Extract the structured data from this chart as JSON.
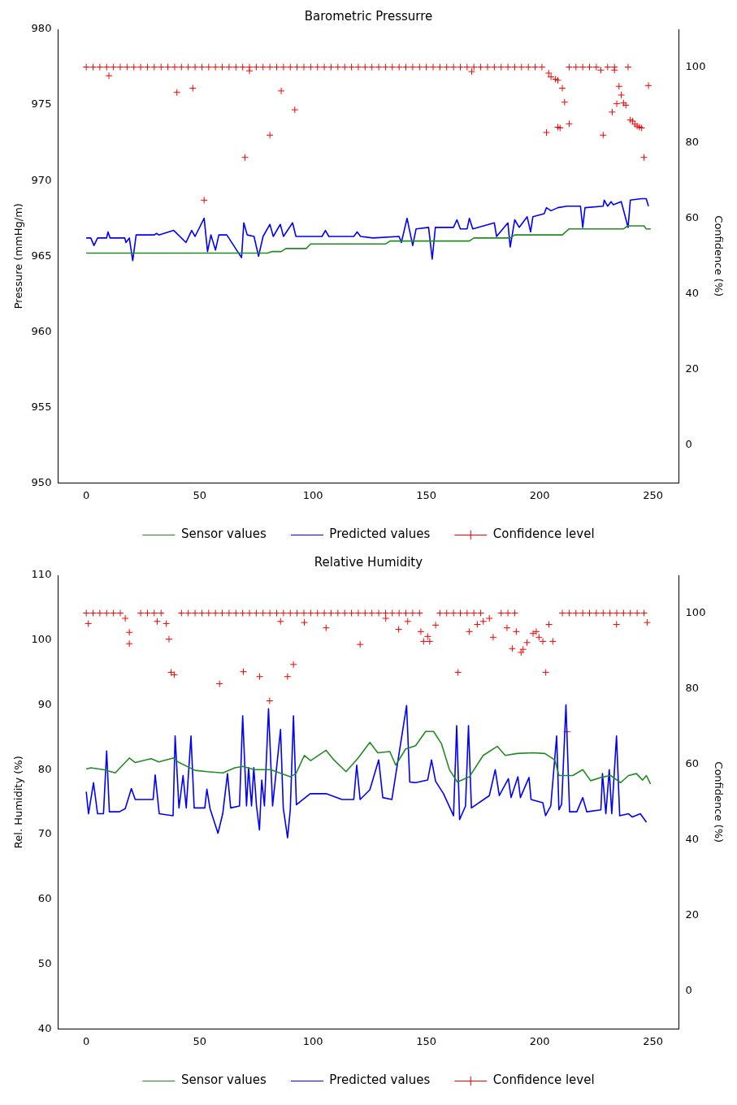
{
  "chart_data": [
    {
      "type": "line",
      "title": "Barometric Pressurre",
      "ylabel": "Pressure (mmHg/m)",
      "y2label": "Confidence (%)",
      "xlim": [
        -12.45,
        261.45
      ],
      "xticks": [
        0,
        50,
        100,
        150,
        200,
        250
      ],
      "ylim": [
        950,
        980
      ],
      "yticks": [
        950,
        955,
        960,
        965,
        970,
        975,
        980
      ],
      "y2lim": [
        -10,
        110
      ],
      "y2ticks": [
        0,
        20,
        40,
        60,
        80,
        100
      ],
      "legend": "bottom",
      "series": [
        {
          "name": "Sensor values",
          "type": "line",
          "color": "#228b22",
          "marker": "none",
          "line_style": "solid",
          "x": [
            0,
            80,
            82,
            86,
            88,
            97,
            99,
            132,
            134,
            169,
            171,
            187,
            189,
            210,
            213,
            237,
            239,
            246,
            247,
            249
          ],
          "values": [
            965.2,
            965.2,
            965.3,
            965.3,
            965.5,
            965.5,
            965.8,
            965.8,
            966.0,
            966.0,
            966.2,
            966.2,
            966.4,
            966.4,
            966.8,
            966.8,
            967.0,
            967.0,
            966.8,
            966.8
          ]
        },
        {
          "name": "Predicted values",
          "type": "line",
          "color": "#0000ff",
          "marker": "none",
          "line_style": "solid",
          "x": [
            0,
            2,
            3.4,
            5,
            9,
            9.6,
            10.5,
            17,
            17.5,
            19,
            20.5,
            22,
            30,
            31,
            32,
            38.6,
            44,
            46.5,
            48,
            52,
            53.5,
            55,
            57,
            58.5,
            62,
            68.5,
            69.5,
            71,
            74,
            76,
            78,
            81,
            82.5,
            85.6,
            87,
            91,
            92.5,
            104,
            105.5,
            107,
            118,
            119.5,
            121,
            126.5,
            138,
            139,
            141.5,
            144,
            145.5,
            151,
            152.6,
            154,
            162,
            163.5,
            165,
            168,
            169,
            170.5,
            180,
            181,
            186,
            187,
            189,
            191,
            194.5,
            196,
            197,
            202,
            203,
            205,
            208,
            212,
            218,
            219,
            220,
            228,
            228.5,
            230,
            231.5,
            232.5,
            236,
            239,
            240,
            245,
            247,
            248
          ],
          "values": [
            966.2,
            966.2,
            965.7,
            966.2,
            966.2,
            966.6,
            966.2,
            966.2,
            965.9,
            966.2,
            964.7,
            966.4,
            966.4,
            966.5,
            966.4,
            966.7,
            965.9,
            966.7,
            966.3,
            967.5,
            965.3,
            966.4,
            965.4,
            966.4,
            966.4,
            964.9,
            967.2,
            966.4,
            966.3,
            965.0,
            966.3,
            967.1,
            966.3,
            967.1,
            966.3,
            967.2,
            966.3,
            966.3,
            966.7,
            966.3,
            966.3,
            966.6,
            966.3,
            966.2,
            966.3,
            965.9,
            967.5,
            965.7,
            966.8,
            966.9,
            964.8,
            966.9,
            966.9,
            967.4,
            966.8,
            966.8,
            967.5,
            966.8,
            967.2,
            966.3,
            967.2,
            965.6,
            967.4,
            966.9,
            967.6,
            966.6,
            967.6,
            967.8,
            968.2,
            968.0,
            968.2,
            968.3,
            968.3,
            966.9,
            968.2,
            968.3,
            968.7,
            968.3,
            968.6,
            968.4,
            968.6,
            966.9,
            968.7,
            968.8,
            968.8,
            968.3
          ]
        },
        {
          "name": "Confidence level",
          "type": "scatter",
          "axis": "y2",
          "color": "#ff0000",
          "marker": "cross",
          "x": [
            0,
            3,
            6,
            9,
            12,
            15,
            18,
            21,
            24,
            27,
            30,
            33,
            36,
            39,
            42,
            45,
            48,
            51,
            54,
            57,
            60,
            63,
            66,
            69,
            72,
            75,
            78,
            81,
            84,
            87,
            90,
            93,
            96,
            99,
            102,
            105,
            108,
            111,
            114,
            117,
            120,
            123,
            126,
            129,
            132,
            135,
            138,
            141,
            144,
            147,
            150,
            153,
            156,
            159,
            162,
            165,
            168,
            171,
            174,
            177,
            180,
            183,
            186,
            189,
            192,
            195,
            198,
            201,
            213,
            216,
            219,
            222,
            225,
            230,
            233,
            239,
            10,
            40,
            47,
            52,
            70,
            81,
            86,
            92,
            72,
            170,
            204,
            205,
            207,
            208,
            210,
            211,
            203,
            208,
            209,
            213,
            227,
            228,
            232,
            233,
            234,
            235,
            236,
            237,
            238,
            240,
            241,
            242,
            243,
            244,
            245,
            246,
            248
          ],
          "values": [
            100,
            100,
            100,
            100,
            100,
            100,
            100,
            100,
            100,
            100,
            100,
            100,
            100,
            100,
            100,
            100,
            100,
            100,
            100,
            100,
            100,
            100,
            100,
            100,
            100,
            100,
            100,
            100,
            100,
            100,
            100,
            100,
            100,
            100,
            100,
            100,
            100,
            100,
            100,
            100,
            100,
            100,
            100,
            100,
            100,
            100,
            100,
            100,
            100,
            100,
            100,
            100,
            100,
            100,
            100,
            100,
            100,
            100,
            100,
            100,
            100,
            100,
            100,
            100,
            100,
            100,
            100,
            100,
            100,
            100,
            100,
            100,
            100,
            100,
            100,
            100,
            97.7,
            93.3,
            94.4,
            64.8,
            76.1,
            82.0,
            93.7,
            88.7,
            99,
            98.8,
            98.4,
            97.4,
            96.8,
            96.5,
            94.4,
            90.7,
            82.7,
            84.1,
            83.9,
            85.0,
            99.2,
            82.0,
            88.1,
            99.2,
            90.3,
            94.9,
            92.6,
            90.5,
            89.9,
            86.0,
            85.7,
            84.9,
            84.4,
            84.1,
            83.9,
            76.1,
            95.1
          ]
        }
      ]
    },
    {
      "type": "line",
      "title": "Relative Humidity",
      "ylabel": "Rel. Humidity (%)",
      "y2label": "Confidence (%)",
      "xlim": [
        -12.45,
        261.45
      ],
      "xticks": [
        0,
        50,
        100,
        150,
        200,
        250
      ],
      "ylim": [
        40,
        110
      ],
      "yticks": [
        40,
        50,
        60,
        70,
        80,
        90,
        100,
        110
      ],
      "y2lim": [
        -10,
        110
      ],
      "y2ticks": [
        0,
        20,
        40,
        60,
        80,
        100
      ],
      "legend": "bottom",
      "series": [
        {
          "name": "Sensor values",
          "type": "line",
          "color": "#228b22",
          "marker": "none",
          "line_style": "solid",
          "x": [
            0,
            2,
            7.6,
            12.8,
            19,
            21.6,
            28.6,
            32,
            38.3,
            41,
            48,
            53.2,
            60.3,
            65.5,
            69,
            74.2,
            81.3,
            90,
            92.5,
            96.2,
            99,
            105.8,
            109,
            114.6,
            119.9,
            125.1,
            128.6,
            133.9,
            136.5,
            140.9,
            145.3,
            149.7,
            153.2,
            156.7,
            160.2,
            163.7,
            169,
            175.1,
            181.3,
            184.8,
            190,
            197.1,
            202.3,
            206.7,
            208.5,
            214.6,
            219,
            222.5,
            226.9,
            231.3,
            235.7,
            239.2,
            242.7,
            245.4,
            247.1,
            248.9
          ],
          "values": [
            80.1,
            80.3,
            80.0,
            79.5,
            81.8,
            81.1,
            81.7,
            81.2,
            81.8,
            81.1,
            79.9,
            79.7,
            79.5,
            80.3,
            80.5,
            80.0,
            80.0,
            78.9,
            79.4,
            82.2,
            81.4,
            83.0,
            81.6,
            79.7,
            81.8,
            84.2,
            82.6,
            82.8,
            80.7,
            83.2,
            83.7,
            85.9,
            85.9,
            84.0,
            80.0,
            78.1,
            78.9,
            82.2,
            83.6,
            82.2,
            82.5,
            82.6,
            82.5,
            81.5,
            79.1,
            79.1,
            80.0,
            78.3,
            78.8,
            79.1,
            78.0,
            79.1,
            79.4,
            78.4,
            79.1,
            77.8
          ]
        },
        {
          "name": "Predicted values",
          "type": "line",
          "color": "#0000ff",
          "marker": "none",
          "line_style": "solid",
          "x": [
            0,
            1,
            3.2,
            5,
            7.6,
            9,
            10.2,
            14.6,
            17.2,
            19.9,
            21.6,
            29.5,
            30.4,
            32.2,
            38.3,
            39.2,
            40.9,
            42.7,
            44.1,
            46.2,
            47.6,
            52.3,
            53.2,
            54.6,
            58.1,
            60.2,
            62.3,
            63.7,
            67.6,
            69,
            70.7,
            71.6,
            72.9,
            73.9,
            75.1,
            76.4,
            77.4,
            78.6,
            80.4,
            82.2,
            85.7,
            86.9,
            88.8,
            90,
            91.4,
            92.7,
            98.8,
            105.8,
            112.8,
            118,
            119.3,
            120.8,
            125.1,
            129,
            130.8,
            134.8,
            141.3,
            142.7,
            145.3,
            150.6,
            152.3,
            154.1,
            157.6,
            162,
            163.4,
            164.7,
            167.3,
            168.6,
            169.9,
            177.8,
            180.4,
            182.2,
            186.2,
            187.4,
            190.4,
            191.5,
            195.3,
            196.2,
            201.4,
            202.6,
            204.9,
            207.5,
            208.5,
            209.7,
            211.6,
            213.2,
            216.4,
            219,
            220.8,
            227,
            227.7,
            229.2,
            230.7,
            231.8,
            233.9,
            235.3,
            239.2,
            240.9,
            244.4,
            247.1
          ],
          "values": [
            76.6,
            73.2,
            78.0,
            73.2,
            73.2,
            82.9,
            73.5,
            73.5,
            74.0,
            77.1,
            75.4,
            75.4,
            79.2,
            73.2,
            72.9,
            85.2,
            74.1,
            79.1,
            74.1,
            85.2,
            74.1,
            74.1,
            77.0,
            74.0,
            70.2,
            73.2,
            79.4,
            74.1,
            74.4,
            88.3,
            74.4,
            80.3,
            74.4,
            80.3,
            74.4,
            70.7,
            78.4,
            74.4,
            89.4,
            74.4,
            86.2,
            74.1,
            69.5,
            73.8,
            88.3,
            74.6,
            76.3,
            76.3,
            75.4,
            75.4,
            80.7,
            75.4,
            76.9,
            81.5,
            75.7,
            75.4,
            89.9,
            78.1,
            78.0,
            78.4,
            81.5,
            78.2,
            76.3,
            72.9,
            86.8,
            72.3,
            74.4,
            86.8,
            74.1,
            76.0,
            80.0,
            76.0,
            78.6,
            75.7,
            78.9,
            75.7,
            78.8,
            75.4,
            74.9,
            72.9,
            74.4,
            85.2,
            73.8,
            74.7,
            90.0,
            73.5,
            73.5,
            75.7,
            73.5,
            73.8,
            79.4,
            73.2,
            80.0,
            73.2,
            85.2,
            72.9,
            73.2,
            72.7,
            73.2,
            71.9
          ]
        },
        {
          "name": "Confidence level",
          "type": "scatter",
          "axis": "y2",
          "color": "#ff0000",
          "marker": "cross",
          "x": [
            0,
            3,
            6,
            9,
            12,
            15,
            24,
            27,
            30,
            33,
            42,
            45,
            48,
            51,
            54,
            57,
            60,
            63,
            66,
            69,
            72,
            75,
            78,
            81,
            84,
            87,
            90,
            93,
            96,
            99,
            102,
            105,
            108,
            111,
            114,
            117,
            120,
            123,
            126,
            129,
            132,
            135,
            138,
            141,
            144,
            147,
            156,
            159,
            162,
            165,
            168,
            171,
            174,
            183,
            186,
            189,
            210,
            213,
            216,
            219,
            222,
            225,
            228,
            231,
            234,
            237,
            240,
            243,
            246,
            0.9,
            17.2,
            19,
            19,
            31.3,
            35.3,
            36.5,
            37.4,
            38.8,
            58.8,
            69.3,
            76.5,
            80.9,
            88.8,
            91.4,
            85.7,
            96.2,
            105.8,
            120.8,
            132.1,
            137.8,
            141.8,
            147.6,
            148.8,
            150.6,
            151.5,
            154.1,
            164,
            169,
            172.5,
            175.1,
            177.8,
            179.5,
            185.6,
            187.9,
            189.7,
            191.8,
            192.7,
            194.4,
            197.1,
            198.5,
            199.7,
            201.4,
            202.7,
            204.1,
            205.8,
            212,
            233.9,
            247.4
          ],
          "values": [
            100,
            100,
            100,
            100,
            100,
            100,
            100,
            100,
            100,
            100,
            100,
            100,
            100,
            100,
            100,
            100,
            100,
            100,
            100,
            100,
            100,
            100,
            100,
            100,
            100,
            100,
            100,
            100,
            100,
            100,
            100,
            100,
            100,
            100,
            100,
            100,
            100,
            100,
            100,
            100,
            100,
            100,
            100,
            100,
            100,
            100,
            100,
            100,
            100,
            100,
            100,
            100,
            100,
            100,
            100,
            100,
            100,
            100,
            100,
            100,
            100,
            100,
            100,
            100,
            100,
            100,
            100,
            100,
            100,
            97.2,
            98.6,
            94.9,
            91.9,
            97.8,
            97.2,
            93.1,
            84.3,
            83.7,
            81.3,
            84.5,
            83.2,
            76.8,
            83.2,
            86.4,
            97.8,
            97.5,
            96.1,
            91.7,
            98.6,
            95.7,
            97.8,
            95.1,
            92.5,
            93.8,
            92.5,
            96.8,
            84.3,
            95.1,
            97.0,
            97.8,
            98.6,
            93.6,
            96.1,
            90.6,
            95.1,
            89.6,
            90.4,
            92.2,
            94.6,
            95.1,
            93.6,
            92.5,
            84.3,
            97.0,
            92.5,
            68.6,
            97.0,
            97.5
          ]
        }
      ]
    }
  ]
}
